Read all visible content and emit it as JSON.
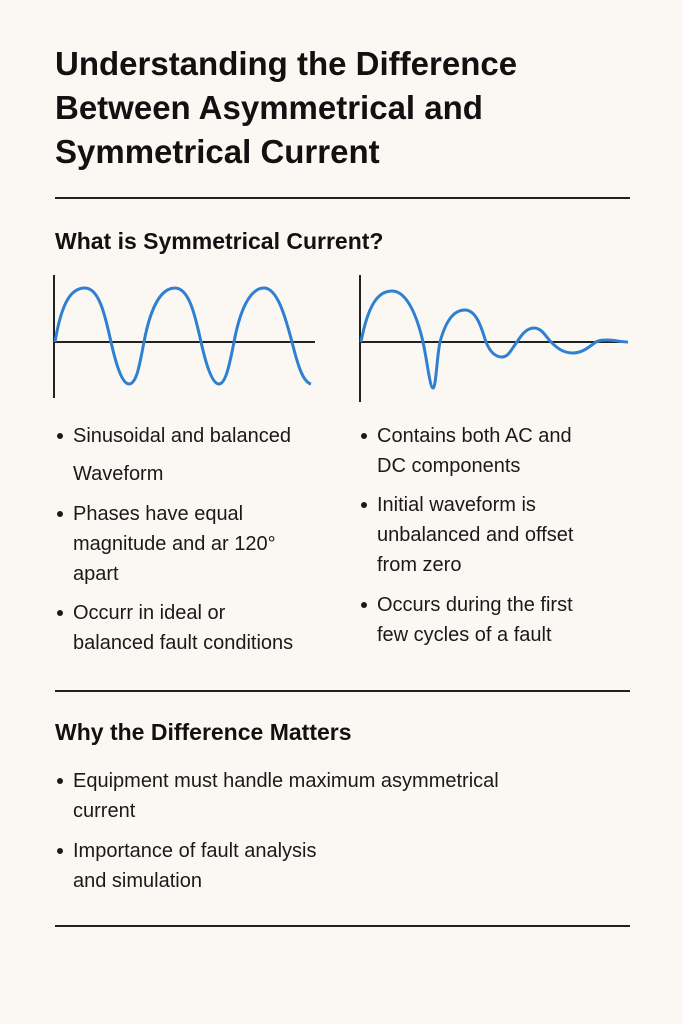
{
  "title": [
    "Understanding the Difference",
    "Between Asymmetrical and",
    "Symmetrical Current"
  ],
  "section1": {
    "heading": "What is Symmetrical Current?",
    "left_bullets": [
      [
        "Sinusoidal and balanced",
        "Waveform"
      ],
      [
        "Phases have equal",
        "magnitude and ar 120°",
        "apart"
      ],
      [
        "Occurr in ideal or",
        "balanced fault conditions"
      ]
    ],
    "right_bullets": [
      [
        "Contains both AC and",
        "DC components"
      ],
      [
        "Initial waveform is",
        "unbalanced and offset",
        "from zero"
      ],
      [
        "Occurs during the first",
        "few cycles of a fault"
      ]
    ]
  },
  "section2": {
    "heading": "Why the Difference Matters",
    "bullets": [
      [
        "Equipment must handle maximum asymmetrical",
        "current"
      ],
      [
        "Importance of fault analysis",
        "and simulation"
      ]
    ]
  },
  "colors": {
    "wave": "#2f80d0",
    "axis": "#222222",
    "background": "#fbf8f4"
  }
}
